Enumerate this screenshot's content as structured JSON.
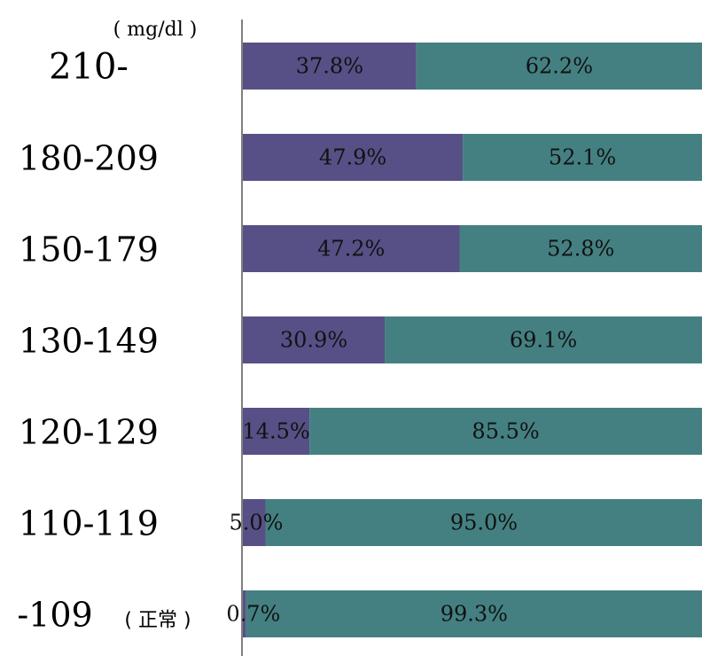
{
  "chart_data": {
    "type": "bar",
    "orientation": "horizontal",
    "stacked": true,
    "normalized_percent": true,
    "unit_label": "( mg/dl )",
    "categories": [
      "210-",
      "180-209",
      "150-179",
      "130-149",
      "120-129",
      "110-119",
      "-109"
    ],
    "category_suffix": {
      "-109": "( 正常 )"
    },
    "series": [
      {
        "values": [
          37.8,
          47.9,
          47.2,
          30.9,
          14.5,
          5.0,
          0.7
        ],
        "labels": [
          "37.8%",
          "47.9%",
          "47.2%",
          "30.9%",
          "14.5%",
          "5.0%",
          "0.7%"
        ],
        "color": "#575086"
      },
      {
        "values": [
          62.2,
          52.1,
          52.8,
          69.1,
          85.5,
          95.0,
          99.3
        ],
        "labels": [
          "62.2%",
          "52.1%",
          "52.8%",
          "69.1%",
          "85.5%",
          "95.0%",
          "99.3%"
        ],
        "color": "#448082"
      }
    ],
    "xlim": [
      0,
      100
    ],
    "grid": false,
    "legend": "none"
  }
}
